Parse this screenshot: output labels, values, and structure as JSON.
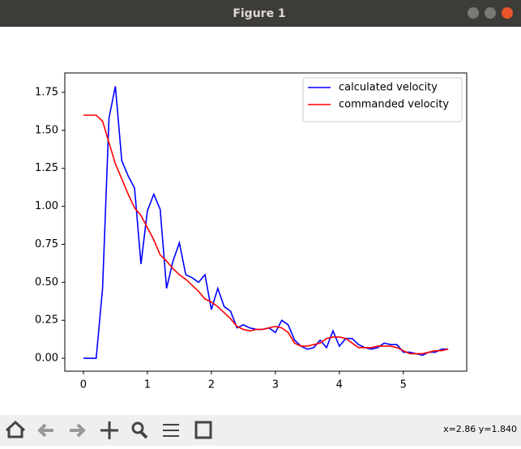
{
  "window": {
    "title": "Figure 1",
    "status": "x=2.86 y=1.840"
  },
  "chart_data": {
    "type": "line",
    "x": [
      0,
      0.1,
      0.2,
      0.3,
      0.4,
      0.5,
      0.6,
      0.7,
      0.8,
      0.9,
      1.0,
      1.1,
      1.2,
      1.3,
      1.4,
      1.5,
      1.6,
      1.7,
      1.8,
      1.9,
      2.0,
      2.1,
      2.2,
      2.3,
      2.4,
      2.5,
      2.6,
      2.7,
      2.8,
      2.9,
      3.0,
      3.1,
      3.2,
      3.3,
      3.4,
      3.5,
      3.6,
      3.7,
      3.8,
      3.9,
      4.0,
      4.1,
      4.2,
      4.3,
      4.4,
      4.5,
      4.6,
      4.7,
      4.8,
      4.9,
      5.0,
      5.1,
      5.2,
      5.3,
      5.4,
      5.5,
      5.6,
      5.7
    ],
    "series": [
      {
        "name": "calculated velocity",
        "color": "#0000ff",
        "values": [
          0,
          0,
          0,
          0.46,
          1.58,
          1.79,
          1.3,
          1.2,
          1.12,
          0.62,
          0.97,
          1.08,
          0.98,
          0.46,
          0.64,
          0.76,
          0.55,
          0.53,
          0.5,
          0.55,
          0.32,
          0.46,
          0.34,
          0.31,
          0.2,
          0.22,
          0.2,
          0.19,
          0.19,
          0.2,
          0.17,
          0.25,
          0.22,
          0.12,
          0.08,
          0.06,
          0.07,
          0.12,
          0.07,
          0.18,
          0.08,
          0.13,
          0.13,
          0.09,
          0.07,
          0.06,
          0.07,
          0.1,
          0.09,
          0.09,
          0.04,
          0.04,
          0.03,
          0.02,
          0.04,
          0.04,
          0.06,
          0.06
        ]
      },
      {
        "name": "commanded velocity",
        "color": "#ff0000",
        "values": [
          1.6,
          1.6,
          1.6,
          1.56,
          1.42,
          1.28,
          1.18,
          1.08,
          0.99,
          0.94,
          0.86,
          0.78,
          0.68,
          0.64,
          0.59,
          0.55,
          0.52,
          0.48,
          0.44,
          0.39,
          0.37,
          0.34,
          0.3,
          0.26,
          0.21,
          0.19,
          0.18,
          0.19,
          0.19,
          0.2,
          0.21,
          0.2,
          0.17,
          0.1,
          0.08,
          0.08,
          0.09,
          0.1,
          0.13,
          0.14,
          0.14,
          0.13,
          0.1,
          0.07,
          0.07,
          0.07,
          0.08,
          0.08,
          0.08,
          0.07,
          0.05,
          0.03,
          0.03,
          0.03,
          0.04,
          0.05,
          0.05,
          0.06
        ]
      }
    ],
    "xlim": [
      -0.29,
      5.99
    ],
    "ylim": [
      -0.085,
      1.878
    ],
    "xticks": [
      0,
      1,
      2,
      3,
      4,
      5
    ],
    "yticks": [
      {
        "value": 0,
        "label": "0.00"
      },
      {
        "value": 0.25,
        "label": "0.25"
      },
      {
        "value": 0.5,
        "label": "0.50"
      },
      {
        "value": 0.75,
        "label": "0.75"
      },
      {
        "value": 1,
        "label": "1.00"
      },
      {
        "value": 1.25,
        "label": "1.25"
      },
      {
        "value": 1.5,
        "label": "1.50"
      },
      {
        "value": 1.75,
        "label": "1.75"
      }
    ],
    "legend": "upper right",
    "grid": false
  }
}
